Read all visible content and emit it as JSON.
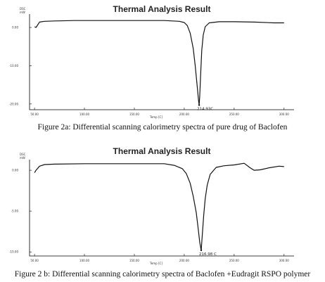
{
  "figures": [
    {
      "caption": "Figure 2a: Differential scanning calorimetry spectra of pure drug of Baclofen",
      "chart_data": {
        "type": "line",
        "title": "Thermal Analysis Result",
        "ylabel_unit": "DSC\nmW",
        "xlabel": "Temp [C]",
        "xlim": [
          45,
          310
        ],
        "ylim": [
          -21.5,
          3.5
        ],
        "x_ticks": [
          "50.00",
          "100.00",
          "150.00",
          "200.00",
          "250.00",
          "300.00"
        ],
        "y_ticks": [
          "0.00",
          "-10.00",
          "-20.00"
        ],
        "annotation": {
          "text": "214.93C",
          "x": 214.93,
          "y": -20.3
        },
        "series": [
          {
            "x": [
              50,
              51.5,
              55,
              60,
              70,
              90,
              120,
              150,
              180,
              195,
              200,
              203,
              206,
              209,
              211,
              213,
              214.3,
              214.93,
              215.5,
              216.5,
              217.5,
              219,
              221,
              225,
              235,
              250,
              270,
              290,
              300
            ],
            "y": [
              0.2,
              0.0,
              1.4,
              1.6,
              1.7,
              1.8,
              1.8,
              1.8,
              1.8,
              1.6,
              1.3,
              0.5,
              -1.5,
              -5.5,
              -10.0,
              -15.5,
              -19.0,
              -20.3,
              -18.0,
              -12.0,
              -6.0,
              -2.0,
              0.2,
              1.2,
              1.5,
              1.5,
              1.4,
              1.2,
              1.2
            ]
          }
        ]
      }
    },
    {
      "caption": "Figure 2 b: Differential scanning calorimetry spectra of Baclofen +Eudragit RSPO polymer",
      "chart_data": {
        "type": "line",
        "title": "Thermal Analysis Result",
        "ylabel_unit": "DSC\nmW",
        "xlabel": "Temp [C]",
        "xlim": [
          45,
          310
        ],
        "ylim": [
          -10.5,
          1.3
        ],
        "x_ticks": [
          "50.00",
          "100.00",
          "150.00",
          "200.00",
          "250.00",
          "300.00"
        ],
        "y_ticks": [
          "0.00",
          "-5.00",
          "-10.00"
        ],
        "annotation": {
          "text": "216.98 C",
          "x": 216.98,
          "y": -9.8
        },
        "series": [
          {
            "x": [
              50,
              51.5,
              55,
              60,
              70,
              100,
              150,
              180,
              190,
              198,
              202,
              206,
              209,
              212,
              214,
              215.5,
              216.98,
              218,
              219.5,
              221,
              223,
              226,
              232,
              240,
              250,
              260,
              266,
              270,
              276,
              285,
              295,
              300
            ],
            "y": [
              -0.3,
              0.0,
              0.5,
              0.7,
              0.75,
              0.8,
              0.8,
              0.8,
              0.6,
              0.2,
              -0.4,
              -1.6,
              -3.2,
              -5.2,
              -7.2,
              -8.8,
              -9.8,
              -8.0,
              -5.5,
              -3.5,
              -1.8,
              -0.5,
              0.35,
              0.55,
              0.65,
              0.85,
              0.3,
              0.0,
              0.05,
              0.3,
              0.5,
              0.45
            ]
          }
        ]
      }
    }
  ]
}
